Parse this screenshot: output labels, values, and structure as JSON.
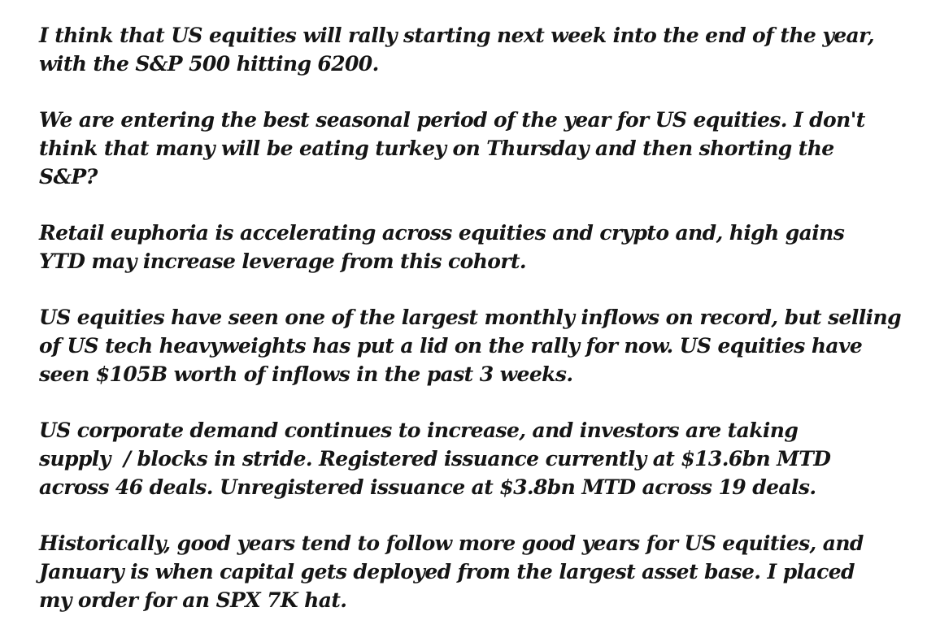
{
  "paragraphs": [
    {
      "lines": [
        "I think that US equities will rally starting next week into the end of the year,",
        "with the S&P 500 hitting 6200."
      ]
    },
    {
      "lines": [
        "We are entering the best seasonal period of the year for US equities. I don't",
        "think that many will be eating turkey on Thursday and then shorting the",
        "S&P?"
      ]
    },
    {
      "lines": [
        "Retail euphoria is accelerating across equities and crypto and, high gains",
        "YTD may increase leverage from this cohort."
      ]
    },
    {
      "lines": [
        "US equities have seen one of the largest monthly inflows on record, but selling",
        "of US tech heavyweights has put a lid on the rally for now. US equities have",
        "seen $105B worth of inflows in the past 3 weeks."
      ]
    },
    {
      "lines": [
        "US corporate demand continues to increase, and investors are taking",
        "supply  / blocks in stride. Registered issuance currently at $13.6bn MTD",
        "across 46 deals. Unregistered issuance at $3.8bn MTD across 19 deals."
      ]
    },
    {
      "lines": [
        "Historically, good years tend to follow more good years for US equities, and",
        "January is when capital gets deployed from the largest asset base. I placed",
        "my order for an SPX 7K hat."
      ]
    }
  ]
}
